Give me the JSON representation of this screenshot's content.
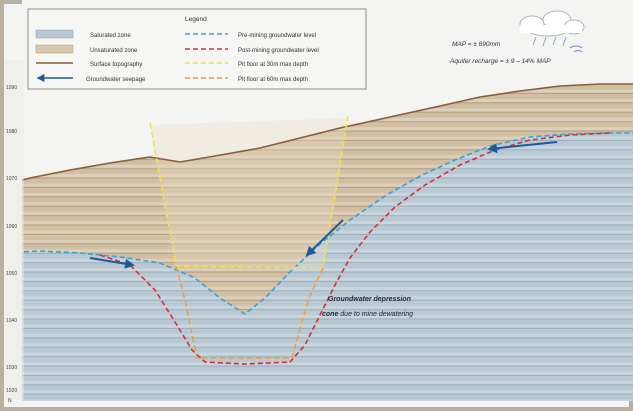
{
  "legend": {
    "title": "Legend",
    "items": [
      {
        "label": "Saturated zone",
        "kind": "swatch",
        "color": "#b8c8d4"
      },
      {
        "label": "Unsaturated zone",
        "kind": "swatch",
        "color": "#d8c8b0"
      },
      {
        "label": "Surface topography",
        "kind": "line",
        "color": "#8a5a3a"
      },
      {
        "label": "Groundwater seepage",
        "kind": "arrow",
        "color": "#1f5a9a"
      },
      {
        "label": "Pre-mining groundwater level",
        "kind": "dash",
        "color": "#3aa0d6"
      },
      {
        "label": "Post-mining groundwater level",
        "kind": "dash",
        "color": "#d0303a"
      },
      {
        "label": "Pit floor at 30m max depth",
        "kind": "dash",
        "color": "#f2e24a"
      },
      {
        "label": "Pit floor at 60m max depth",
        "kind": "dash",
        "color": "#f0a040"
      }
    ]
  },
  "notes": {
    "map_line": "MAP = ± 690mm",
    "recharge_line": "Aquifer recharge = ± 9 – 14% MAP"
  },
  "annotation": {
    "line1": "Groundwater depression",
    "line2_bold": "cone",
    "line2_rest": " due to mine dewatering"
  },
  "y_axis": {
    "ticks": [
      "1090",
      "1080",
      "1070",
      "1060",
      "1050",
      "1040",
      "1030",
      "1020"
    ]
  },
  "corner_label": "N",
  "colors": {
    "saturated": "#b8c8d4",
    "unsaturated": "#d8c8b0",
    "surface": "#8a5a3a",
    "seepage": "#1f5a9a",
    "pre_mining": "#3aa0d6",
    "post_mining": "#d0303a",
    "pit_30": "#f2e24a",
    "pit_60": "#f0a040",
    "sky": "#f4f4f2"
  }
}
